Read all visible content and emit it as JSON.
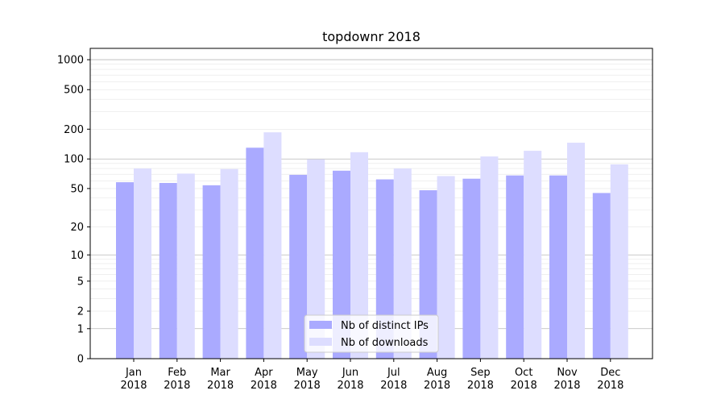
{
  "chart_data": {
    "type": "bar",
    "title": "topdownr 2018",
    "xlabel": "",
    "ylabel": "",
    "yscale": "symlog",
    "ylim": [
      0,
      1300
    ],
    "yticks": [
      0,
      1,
      2,
      5,
      10,
      20,
      50,
      100,
      200,
      500,
      1000
    ],
    "ytick_labels": [
      "0",
      "1",
      "2",
      "5",
      "10",
      "20",
      "50",
      "100",
      "200",
      "500",
      "1000"
    ],
    "categories": [
      "Jan\n2018",
      "Feb\n2018",
      "Mar\n2018",
      "Apr\n2018",
      "May\n2018",
      "Jun\n2018",
      "Jul\n2018",
      "Aug\n2018",
      "Sep\n2018",
      "Oct\n2018",
      "Nov\n2018",
      "Dec\n2018"
    ],
    "category_lines": [
      [
        "Jan",
        "2018"
      ],
      [
        "Feb",
        "2018"
      ],
      [
        "Mar",
        "2018"
      ],
      [
        "Apr",
        "2018"
      ],
      [
        "May",
        "2018"
      ],
      [
        "Jun",
        "2018"
      ],
      [
        "Jul",
        "2018"
      ],
      [
        "Aug",
        "2018"
      ],
      [
        "Sep",
        "2018"
      ],
      [
        "Oct",
        "2018"
      ],
      [
        "Nov",
        "2018"
      ],
      [
        "Dec",
        "2018"
      ]
    ],
    "series": [
      {
        "name": "Nb of distinct IPs",
        "color": "#aaaaff",
        "values": [
          58,
          57,
          54,
          130,
          69,
          76,
          62,
          48,
          63,
          68,
          68,
          45
        ]
      },
      {
        "name": "Nb of downloads",
        "color": "#ddddff",
        "values": [
          80,
          71,
          79,
          186,
          99,
          117,
          80,
          67,
          106,
          121,
          146,
          88
        ]
      }
    ],
    "grid": true,
    "legend_position": "bottom-center"
  }
}
